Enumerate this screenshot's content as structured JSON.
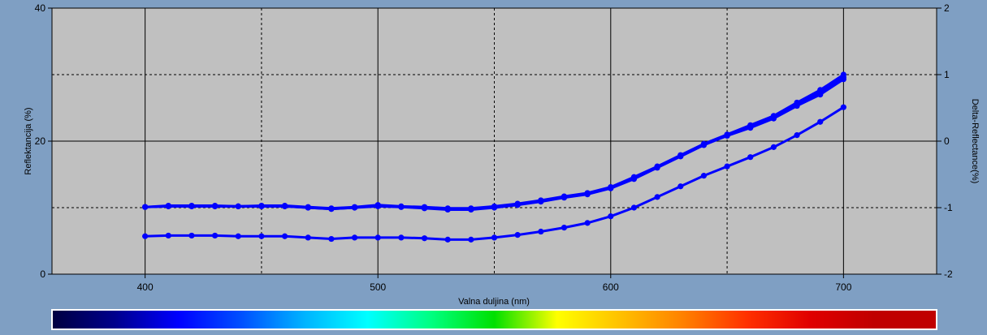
{
  "chart_data": {
    "type": "line",
    "xlabel": "Valna duljina (nm)",
    "ylabel": "Reflektancija (%)",
    "y2label": "Delta-Reflectance(%)",
    "xlim": [
      360,
      740
    ],
    "ylim": [
      0,
      40
    ],
    "y2lim": [
      -2,
      2
    ],
    "x_ticks": [
      400,
      500,
      600,
      700
    ],
    "y_ticks": [
      0,
      20,
      40
    ],
    "y2_ticks": [
      "-2",
      "-1",
      "0",
      "1",
      "2"
    ],
    "grid": true,
    "series_color": "#0000ff",
    "x": [
      400,
      410,
      420,
      430,
      440,
      450,
      460,
      470,
      480,
      490,
      500,
      510,
      520,
      530,
      540,
      550,
      560,
      570,
      580,
      590,
      600,
      610,
      620,
      630,
      640,
      650,
      660,
      670,
      680,
      690,
      700
    ],
    "series": [
      {
        "values": [
          10.1,
          10.2,
          10.2,
          10.2,
          10.2,
          10.2,
          10.2,
          10.0,
          9.8,
          10.0,
          10.2,
          10.1,
          9.9,
          9.7,
          9.7,
          10.0,
          10.4,
          10.9,
          11.5,
          12.0,
          12.9,
          14.3,
          16.0,
          17.7,
          19.4,
          20.8,
          22.0,
          23.4,
          25.3,
          27.0,
          29.3
        ]
      },
      {
        "values": [
          10.1,
          10.2,
          10.2,
          10.2,
          10.2,
          10.2,
          10.2,
          10.0,
          9.8,
          10.0,
          10.3,
          10.1,
          10.0,
          9.8,
          9.8,
          10.1,
          10.5,
          11.0,
          11.6,
          12.1,
          13.0,
          14.5,
          16.1,
          17.8,
          19.5,
          20.9,
          22.2,
          23.6,
          25.5,
          27.3,
          29.6
        ]
      },
      {
        "values": [
          10.1,
          10.3,
          10.3,
          10.3,
          10.2,
          10.3,
          10.3,
          10.1,
          9.9,
          10.1,
          10.4,
          10.2,
          10.1,
          9.9,
          9.9,
          10.2,
          10.6,
          11.1,
          11.7,
          12.2,
          13.1,
          14.6,
          16.2,
          17.9,
          19.6,
          21.0,
          22.4,
          23.8,
          25.8,
          27.7,
          30.0
        ]
      },
      {
        "values": [
          5.7,
          5.8,
          5.8,
          5.8,
          5.7,
          5.7,
          5.7,
          5.5,
          5.3,
          5.5,
          5.5,
          5.5,
          5.4,
          5.2,
          5.2,
          5.5,
          5.9,
          6.4,
          7.0,
          7.7,
          8.7,
          10.0,
          11.6,
          13.2,
          14.8,
          16.2,
          17.6,
          19.1,
          20.9,
          22.9,
          25.1
        ]
      }
    ]
  },
  "spectrum_colors": [
    "#000040",
    "#00008c",
    "#0000ff",
    "#0050ff",
    "#00b4ff",
    "#00ffff",
    "#00ff80",
    "#00e000",
    "#ffff00",
    "#ffc000",
    "#ff8000",
    "#ff3000",
    "#e00000",
    "#c00000",
    "#c00000"
  ]
}
